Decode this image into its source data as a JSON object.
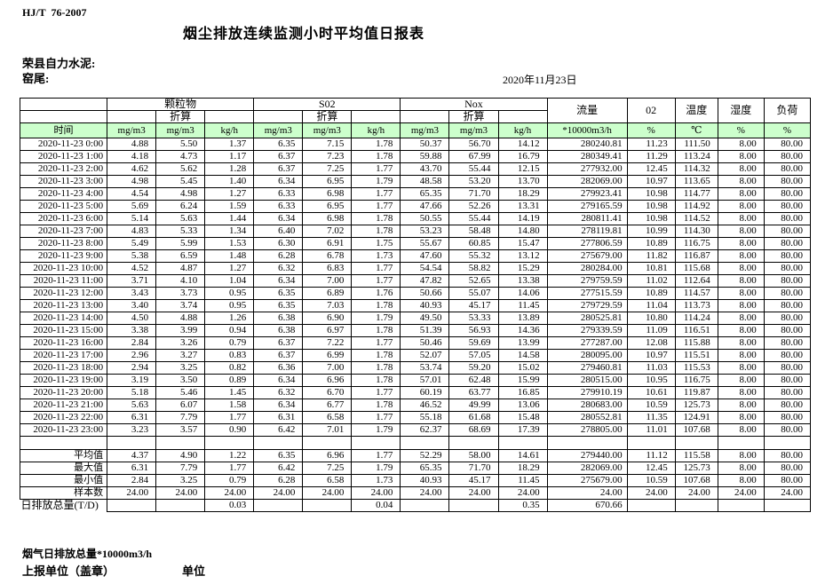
{
  "doc": {
    "standard": "HJ/T  76-2007",
    "title": "烟尘排放连续监测小时平均值日报表",
    "company": "荣县自力水泥:",
    "location": "窑尾:",
    "date": "2020年11月23日"
  },
  "colors": {
    "header_green": "#ccffcc",
    "border": "#000000"
  },
  "table": {
    "header": {
      "time_label": "时间",
      "group_particulate": "颗粒物",
      "group_so2": "S02",
      "group_nox": "Nox",
      "converted_label": "折算",
      "unit_mg": "mg/m3",
      "unit_kg": "kg/h",
      "flow_label": "流量",
      "flow_unit": "*10000m3/h",
      "o2_label": "02",
      "o2_unit": "%",
      "temp_label": "温度",
      "temp_unit": "℃",
      "humidity_label": "湿度",
      "humidity_unit": "%",
      "load_label": "负荷",
      "load_unit": "%"
    },
    "rows": [
      {
        "time": "2020-11-23 0:00",
        "values": [
          "4.88",
          "5.50",
          "1.37",
          "6.35",
          "7.15",
          "1.78",
          "50.37",
          "56.70",
          "14.12",
          "280240.81",
          "11.23",
          "111.50",
          "8.00",
          "80.00"
        ]
      },
      {
        "time": "2020-11-23 1:00",
        "values": [
          "4.18",
          "4.73",
          "1.17",
          "6.37",
          "7.23",
          "1.78",
          "59.88",
          "67.99",
          "16.79",
          "280349.41",
          "11.29",
          "113.24",
          "8.00",
          "80.00"
        ]
      },
      {
        "time": "2020-11-23 2:00",
        "values": [
          "4.62",
          "5.62",
          "1.28",
          "6.37",
          "7.25",
          "1.77",
          "43.70",
          "55.44",
          "12.15",
          "277932.00",
          "12.45",
          "114.32",
          "8.00",
          "80.00"
        ]
      },
      {
        "time": "2020-11-23 3:00",
        "values": [
          "4.98",
          "5.45",
          "1.40",
          "6.34",
          "6.95",
          "1.79",
          "48.58",
          "53.20",
          "13.70",
          "282069.00",
          "10.97",
          "113.65",
          "8.00",
          "80.00"
        ]
      },
      {
        "time": "2020-11-23 4:00",
        "values": [
          "4.54",
          "4.98",
          "1.27",
          "6.33",
          "6.98",
          "1.77",
          "65.35",
          "71.70",
          "18.29",
          "279923.41",
          "10.98",
          "114.77",
          "8.00",
          "80.00"
        ]
      },
      {
        "time": "2020-11-23 5:00",
        "values": [
          "5.69",
          "6.24",
          "1.59",
          "6.33",
          "6.95",
          "1.77",
          "47.66",
          "52.26",
          "13.31",
          "279165.59",
          "10.98",
          "114.92",
          "8.00",
          "80.00"
        ]
      },
      {
        "time": "2020-11-23 6:00",
        "values": [
          "5.14",
          "5.63",
          "1.44",
          "6.34",
          "6.98",
          "1.78",
          "50.55",
          "55.44",
          "14.19",
          "280811.41",
          "10.98",
          "114.52",
          "8.00",
          "80.00"
        ]
      },
      {
        "time": "2020-11-23 7:00",
        "values": [
          "4.83",
          "5.33",
          "1.34",
          "6.40",
          "7.02",
          "1.78",
          "53.23",
          "58.48",
          "14.80",
          "278119.81",
          "10.99",
          "114.30",
          "8.00",
          "80.00"
        ]
      },
      {
        "time": "2020-11-23 8:00",
        "values": [
          "5.49",
          "5.99",
          "1.53",
          "6.30",
          "6.91",
          "1.75",
          "55.67",
          "60.85",
          "15.47",
          "277806.59",
          "10.89",
          "116.75",
          "8.00",
          "80.00"
        ]
      },
      {
        "time": "2020-11-23 9:00",
        "values": [
          "5.38",
          "6.59",
          "1.48",
          "6.28",
          "6.78",
          "1.73",
          "47.60",
          "55.32",
          "13.12",
          "275679.00",
          "11.82",
          "116.87",
          "8.00",
          "80.00"
        ]
      },
      {
        "time": "2020-11-23 10:00",
        "values": [
          "4.52",
          "4.87",
          "1.27",
          "6.32",
          "6.83",
          "1.77",
          "54.54",
          "58.82",
          "15.29",
          "280284.00",
          "10.81",
          "115.68",
          "8.00",
          "80.00"
        ]
      },
      {
        "time": "2020-11-23 11:00",
        "values": [
          "3.71",
          "4.10",
          "1.04",
          "6.34",
          "7.00",
          "1.77",
          "47.82",
          "52.65",
          "13.38",
          "279759.59",
          "11.02",
          "112.64",
          "8.00",
          "80.00"
        ]
      },
      {
        "time": "2020-11-23 12:00",
        "values": [
          "3.43",
          "3.73",
          "0.95",
          "6.35",
          "6.89",
          "1.76",
          "50.66",
          "55.07",
          "14.06",
          "277515.59",
          "10.89",
          "114.57",
          "8.00",
          "80.00"
        ]
      },
      {
        "time": "2020-11-23 13:00",
        "values": [
          "3.40",
          "3.74",
          "0.95",
          "6.35",
          "7.03",
          "1.78",
          "40.93",
          "45.17",
          "11.45",
          "279729.59",
          "11.04",
          "113.73",
          "8.00",
          "80.00"
        ]
      },
      {
        "time": "2020-11-23 14:00",
        "values": [
          "4.50",
          "4.88",
          "1.26",
          "6.38",
          "6.90",
          "1.79",
          "49.50",
          "53.33",
          "13.89",
          "280525.81",
          "10.80",
          "114.24",
          "8.00",
          "80.00"
        ]
      },
      {
        "time": "2020-11-23 15:00",
        "values": [
          "3.38",
          "3.99",
          "0.94",
          "6.38",
          "6.97",
          "1.78",
          "51.39",
          "56.93",
          "14.36",
          "279339.59",
          "11.09",
          "116.51",
          "8.00",
          "80.00"
        ]
      },
      {
        "time": "2020-11-23 16:00",
        "values": [
          "2.84",
          "3.26",
          "0.79",
          "6.37",
          "7.22",
          "1.77",
          "50.46",
          "59.69",
          "13.99",
          "277287.00",
          "12.08",
          "115.88",
          "8.00",
          "80.00"
        ]
      },
      {
        "time": "2020-11-23 17:00",
        "values": [
          "2.96",
          "3.27",
          "0.83",
          "6.37",
          "6.99",
          "1.78",
          "52.07",
          "57.05",
          "14.58",
          "280095.00",
          "10.97",
          "115.51",
          "8.00",
          "80.00"
        ]
      },
      {
        "time": "2020-11-23 18:00",
        "values": [
          "2.94",
          "3.25",
          "0.82",
          "6.36",
          "7.00",
          "1.78",
          "53.74",
          "59.20",
          "15.02",
          "279460.81",
          "11.03",
          "115.53",
          "8.00",
          "80.00"
        ]
      },
      {
        "time": "2020-11-23 19:00",
        "values": [
          "3.19",
          "3.50",
          "0.89",
          "6.34",
          "6.96",
          "1.78",
          "57.01",
          "62.48",
          "15.99",
          "280515.00",
          "10.95",
          "116.75",
          "8.00",
          "80.00"
        ]
      },
      {
        "time": "2020-11-23 20:00",
        "values": [
          "5.18",
          "5.46",
          "1.45",
          "6.32",
          "6.70",
          "1.77",
          "60.19",
          "63.77",
          "16.85",
          "279910.19",
          "10.61",
          "119.87",
          "8.00",
          "80.00"
        ]
      },
      {
        "time": "2020-11-23 21:00",
        "values": [
          "5.63",
          "6.07",
          "1.58",
          "6.34",
          "6.77",
          "1.78",
          "46.52",
          "49.99",
          "13.06",
          "280683.00",
          "10.59",
          "125.73",
          "8.00",
          "80.00"
        ]
      },
      {
        "time": "2020-11-23 22:00",
        "values": [
          "6.31",
          "7.79",
          "1.77",
          "6.31",
          "6.58",
          "1.77",
          "55.18",
          "61.68",
          "15.48",
          "280552.81",
          "11.35",
          "124.91",
          "8.00",
          "80.00"
        ]
      },
      {
        "time": "2020-11-23 23:00",
        "values": [
          "3.23",
          "3.57",
          "0.90",
          "6.42",
          "7.01",
          "1.79",
          "62.37",
          "68.69",
          "17.39",
          "278805.00",
          "11.01",
          "107.68",
          "8.00",
          "80.00"
        ]
      }
    ],
    "summary": [
      {
        "label": "平均值",
        "type": "stat",
        "values": [
          "4.37",
          "4.90",
          "1.22",
          "6.35",
          "6.96",
          "1.77",
          "52.29",
          "58.00",
          "14.61",
          "279440.00",
          "11.12",
          "115.58",
          "8.00",
          "80.00"
        ]
      },
      {
        "label": "最大值",
        "type": "stat",
        "values": [
          "6.31",
          "7.79",
          "1.77",
          "6.42",
          "7.25",
          "1.79",
          "65.35",
          "71.70",
          "18.29",
          "282069.00",
          "12.45",
          "125.73",
          "8.00",
          "80.00"
        ]
      },
      {
        "label": "最小值",
        "type": "stat",
        "values": [
          "2.84",
          "3.25",
          "0.79",
          "6.28",
          "6.58",
          "1.73",
          "40.93",
          "45.17",
          "11.45",
          "275679.00",
          "10.59",
          "107.68",
          "8.00",
          "80.00"
        ]
      },
      {
        "label": "样本数",
        "type": "stat",
        "values": [
          "24.00",
          "24.00",
          "24.00",
          "24.00",
          "24.00",
          "24.00",
          "24.00",
          "24.00",
          "24.00",
          "24.00",
          "24.00",
          "24.00",
          "24.00",
          "24.00"
        ]
      },
      {
        "label": "日排放总量(T/D)",
        "type": "total",
        "values": [
          "",
          "",
          "0.03",
          "",
          "",
          "0.04",
          "",
          "",
          "0.35",
          "670.66",
          "",
          "",
          "",
          ""
        ]
      }
    ]
  },
  "footer": {
    "flow_note": "烟气日排放总量*10000m3/h",
    "report_unit": "上报单位（盖章）",
    "unit_label": "单位"
  }
}
